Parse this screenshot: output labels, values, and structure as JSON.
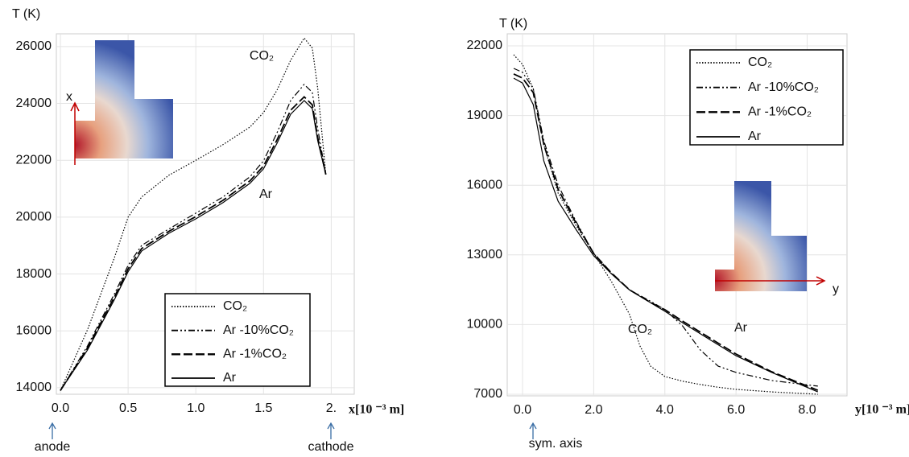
{
  "chart_data": [
    {
      "type": "line",
      "y_label": "T (K)",
      "x_label": "x[10 ⁻³ m]",
      "xlim": [
        -0.03,
        2.17
      ],
      "ylim": [
        13770,
        26450
      ],
      "xticks": [
        {
          "value": 0,
          "label": "0.0"
        },
        0.5,
        {
          "value": 1,
          "label": "1.0"
        },
        1.5,
        {
          "value": 2,
          "label": "2."
        }
      ],
      "yticks": [
        14000,
        16000,
        18000,
        20000,
        22000,
        24000,
        26000
      ],
      "grid": true,
      "legend": "lower right",
      "x": [
        0,
        0.2,
        0.4,
        0.5,
        0.6,
        0.8,
        1.0,
        1.2,
        1.4,
        1.5,
        1.6,
        1.7,
        1.8,
        1.86,
        1.9,
        1.96
      ],
      "series": [
        {
          "name": "CO₂",
          "color": "#000000",
          "dash": "dotted",
          "values": [
            13900,
            16040,
            18590,
            20000,
            20710,
            21470,
            22000,
            22550,
            23170,
            23680,
            24470,
            25520,
            26300,
            25950,
            24530,
            21500
          ]
        },
        {
          "name": "Ar -10%CO₂",
          "color": "#000000",
          "dash": "dashdotdot",
          "values": [
            13900,
            15470,
            17310,
            18300,
            19010,
            19580,
            20140,
            20710,
            21420,
            21980,
            22970,
            24100,
            24670,
            24390,
            23110,
            21500
          ]
        },
        {
          "name": "Ar -1%CO₂",
          "color": "#000000",
          "dash": "dashed",
          "values": [
            13900,
            15400,
            17200,
            18180,
            18900,
            19500,
            20020,
            20590,
            21280,
            21800,
            22720,
            23760,
            24230,
            23950,
            22800,
            21500
          ]
        },
        {
          "name": "Ar",
          "color": "#000000",
          "dash": "solid",
          "values": [
            13900,
            15330,
            17110,
            18080,
            18810,
            19430,
            19940,
            20510,
            21190,
            21700,
            22600,
            23620,
            24100,
            23820,
            22690,
            21500
          ]
        }
      ],
      "annotations": [
        "CO₂",
        "Ar",
        "anode",
        "cathode",
        "x"
      ]
    },
    {
      "type": "line",
      "y_label": "T (K)",
      "x_label": "y[10 ⁻³ m]",
      "xlim": [
        -0.43,
        9.12
      ],
      "ylim": [
        6930,
        22520
      ],
      "xticks": [
        {
          "value": 0,
          "label": "0.0"
        },
        {
          "value": 2,
          "label": "2.0"
        },
        {
          "value": 4,
          "label": "4.0"
        },
        {
          "value": 6,
          "label": "6.0"
        },
        {
          "value": 8,
          "label": "8.0"
        }
      ],
      "yticks": [
        7000,
        10000,
        13000,
        16000,
        19000,
        22000
      ],
      "grid": true,
      "legend": "upper right",
      "x": [
        -0.25,
        0,
        0.3,
        0.6,
        1.0,
        1.5,
        2.0,
        2.5,
        3.0,
        3.3,
        3.6,
        4.0,
        4.5,
        5.0,
        5.5,
        6.0,
        7.0,
        8.3
      ],
      "series": [
        {
          "name": "CO₂",
          "color": "#000000",
          "dash": "dotted",
          "values": [
            21620,
            21200,
            20160,
            17740,
            15660,
            14270,
            13060,
            11850,
            10460,
            9080,
            8210,
            7760,
            7560,
            7420,
            7300,
            7210,
            7100,
            7000
          ]
        },
        {
          "name": "Ar -10%CO₂",
          "color": "#000000",
          "dash": "dashdotdot",
          "values": [
            21030,
            20860,
            20160,
            17910,
            16010,
            14450,
            13060,
            12200,
            11500,
            11250,
            11000,
            10640,
            9940,
            8900,
            8210,
            7940,
            7590,
            7350
          ]
        },
        {
          "name": "Ar -1%CO₂",
          "color": "#000000",
          "dash": "dashed",
          "values": [
            20790,
            20610,
            19990,
            17740,
            15830,
            14380,
            13060,
            12220,
            11500,
            11230,
            10950,
            10640,
            10150,
            9670,
            9200,
            8730,
            7970,
            7170
          ]
        },
        {
          "name": "Ar",
          "color": "#000000",
          "dash": "solid",
          "values": [
            20610,
            20400,
            19470,
            17040,
            15310,
            14100,
            12960,
            12180,
            11500,
            11220,
            10940,
            10570,
            10080,
            9600,
            9130,
            8660,
            7940,
            7100
          ]
        }
      ],
      "annotations": [
        "CO₂",
        "Ar",
        "sym. axis",
        "y"
      ]
    }
  ]
}
